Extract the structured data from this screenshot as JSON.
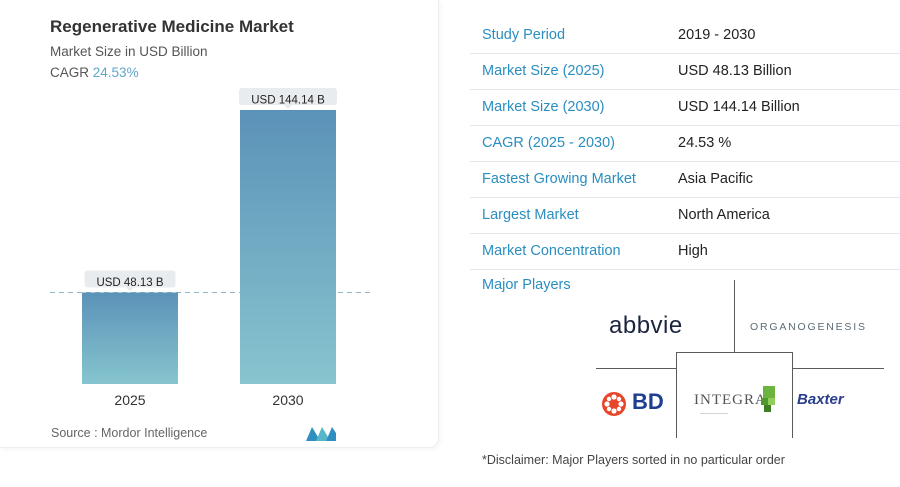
{
  "header": {
    "title": "Regenerative Medicine Market",
    "subtitle": "Market Size in USD Billion",
    "cagr_label": "CAGR",
    "cagr_value": "24.53%"
  },
  "chart_data": {
    "type": "bar",
    "categories": [
      "2025",
      "2030"
    ],
    "values": [
      48.13,
      144.14
    ],
    "data_labels": [
      "USD 48.13 B",
      "USD 144.14 B"
    ],
    "colors": {
      "bar_top": "#5b92b8",
      "bar_bottom": "#86c5cf",
      "guide_line": "#8fb8c9"
    },
    "grid": false,
    "title": "Regenerative Medicine Market",
    "ylabel": "Market Size in USD Billion"
  },
  "footer": {
    "source": "Source :  Mordor Intelligence"
  },
  "stats": [
    {
      "label": "Study Period",
      "value": "2019 - 2030"
    },
    {
      "label": "Market Size (2025)",
      "value": "USD 48.13 Billion"
    },
    {
      "label": "Market Size (2030)",
      "value": "USD 144.14 Billion"
    },
    {
      "label": "CAGR (2025 - 2030)",
      "value": "24.53 %"
    },
    {
      "label": "Fastest Growing Market",
      "value": "Asia Pacific"
    },
    {
      "label": "Largest Market",
      "value": "North America"
    },
    {
      "label": "Market Concentration",
      "value": "High"
    }
  ],
  "players": {
    "label": "Major Players",
    "logos": [
      "abbvie",
      "ORGANOGENESIS",
      "BD",
      "INTEGRA",
      "Baxter"
    ]
  },
  "disclaimer": "*Disclaimer: Major Players sorted in no particular order",
  "accent_color": "#2a8ec0"
}
